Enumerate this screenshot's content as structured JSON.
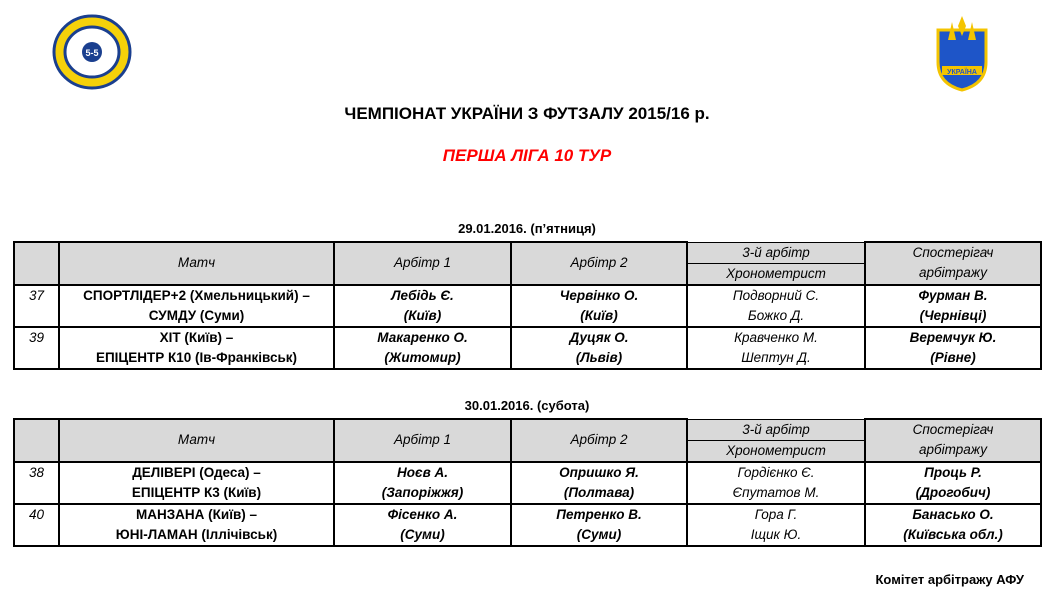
{
  "header": {
    "title": "ЧЕМПІОНАТ УКРАЇНИ З ФУТЗАЛУ 2015/16 р.",
    "subtitle": "ПЕРША ЛІГА 10 ТУР",
    "left_logo": "futsal-association-logo",
    "right_logo": "ffu-ukraine-logo",
    "right_logo_text": "УКРАЇНА"
  },
  "columns": {
    "match": "Матч",
    "ref1": "Арбітр 1",
    "ref2": "Арбітр 2",
    "third": "3-й арбітр",
    "timekeeper": "Хронометрист",
    "observer_1": "Спостерігач",
    "observer_2": "арбітражу"
  },
  "days": [
    {
      "date": "29.01.2016. (п’ятниця)",
      "rows": [
        {
          "num": "37",
          "home": "СПОРТЛІДЕР+2 (Хмельницький) –",
          "away": "СУМДУ (Суми)",
          "ref1": "Лебідь Є.",
          "ref1_city": "(Київ)",
          "ref2": "Червінко О.",
          "ref2_city": "(Київ)",
          "third": "Подворний С.",
          "timekeeper": "Божко Д.",
          "observer": "Фурман В.",
          "observer_city": "(Чернівці)"
        },
        {
          "num": "39",
          "home": "ХІТ (Київ) –",
          "away": "ЕПІЦЕНТР К10 (Ів-Франківськ)",
          "ref1": "Макаренко О.",
          "ref1_city": "(Житомир)",
          "ref2": "Дуцяк О.",
          "ref2_city": "(Львів)",
          "third": "Кравченко М.",
          "timekeeper": "Шептун Д.",
          "observer": "Веремчук Ю.",
          "observer_city": "(Рівне)"
        }
      ]
    },
    {
      "date": "30.01.2016. (субота)",
      "rows": [
        {
          "num": "38",
          "home": "ДЕЛІВЕРІ (Одеса) –",
          "away": "ЕПІЦЕНТР К3 (Київ)",
          "ref1": "Ноєв А.",
          "ref1_city": "(Запоріжжя)",
          "ref2": "Опришко Я.",
          "ref2_city": "(Полтава)",
          "third": "Гордієнко Є.",
          "timekeeper": "Єпутатов М.",
          "observer": "Проць Р.",
          "observer_city": "(Дрогобич)"
        },
        {
          "num": "40",
          "home": "МАНЗАНА (Київ) –",
          "away": "ЮНІ-ЛАМАН (Іллічівськ)",
          "ref1": "Фісенко А.",
          "ref1_city": "(Суми)",
          "ref2": "Петренко В.",
          "ref2_city": "(Суми)",
          "third": "Гора Г.",
          "timekeeper": "Іщик Ю.",
          "observer": "Банасько О.",
          "observer_city": "(Київська обл.)"
        }
      ]
    }
  ],
  "footer": "Комітет арбітражу АФУ"
}
